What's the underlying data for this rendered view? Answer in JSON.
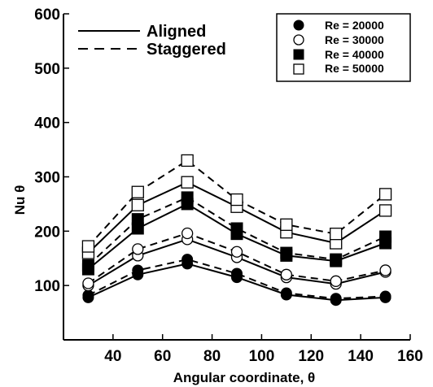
{
  "chart_data": {
    "type": "line",
    "xlabel": "Angular coordinate, θ",
    "ylabel": "Nu θ",
    "xlim": [
      20,
      160
    ],
    "ylim": [
      0,
      600
    ],
    "x_ticks": [
      40,
      60,
      80,
      100,
      120,
      140,
      160
    ],
    "y_ticks": [
      100,
      200,
      300,
      400,
      500,
      600
    ],
    "x": [
      30,
      50,
      70,
      90,
      110,
      130,
      150
    ],
    "grid": false,
    "line_legend": [
      {
        "label": "Aligned",
        "style": "solid"
      },
      {
        "label": "Staggered",
        "style": "dashed"
      }
    ],
    "marker_legend": [
      {
        "label": "Re = 20000",
        "marker": "filled-circle"
      },
      {
        "label": "Re = 30000",
        "marker": "open-circle"
      },
      {
        "label": "Re = 40000",
        "marker": "filled-square"
      },
      {
        "label": "Re = 50000",
        "marker": "open-square"
      }
    ],
    "series": [
      {
        "re": "Re = 20000",
        "arrangement": "Aligned",
        "marker": "filled-circle",
        "values": [
          78,
          120,
          140,
          115,
          83,
          73,
          78
        ]
      },
      {
        "re": "Re = 20000",
        "arrangement": "Staggered",
        "marker": "filled-circle",
        "values": [
          82,
          128,
          148,
          122,
          86,
          76,
          80
        ]
      },
      {
        "re": "Re = 30000",
        "arrangement": "Aligned",
        "marker": "open-circle",
        "values": [
          100,
          155,
          185,
          152,
          115,
          103,
          125
        ]
      },
      {
        "re": "Re = 30000",
        "arrangement": "Staggered",
        "marker": "open-circle",
        "values": [
          104,
          167,
          196,
          162,
          120,
          108,
          128
        ]
      },
      {
        "re": "Re = 40000",
        "arrangement": "Aligned",
        "marker": "filled-square",
        "values": [
          130,
          205,
          250,
          195,
          155,
          145,
          178
        ]
      },
      {
        "re": "Re = 40000",
        "arrangement": "Staggered",
        "marker": "filled-square",
        "values": [
          137,
          222,
          262,
          205,
          160,
          148,
          190
        ]
      },
      {
        "re": "Re = 50000",
        "arrangement": "Aligned",
        "marker": "open-square",
        "values": [
          160,
          248,
          290,
          245,
          198,
          178,
          238
        ]
      },
      {
        "re": "Re = 50000",
        "arrangement": "Staggered",
        "marker": "open-square",
        "values": [
          172,
          272,
          330,
          258,
          212,
          195,
          268
        ]
      }
    ]
  }
}
